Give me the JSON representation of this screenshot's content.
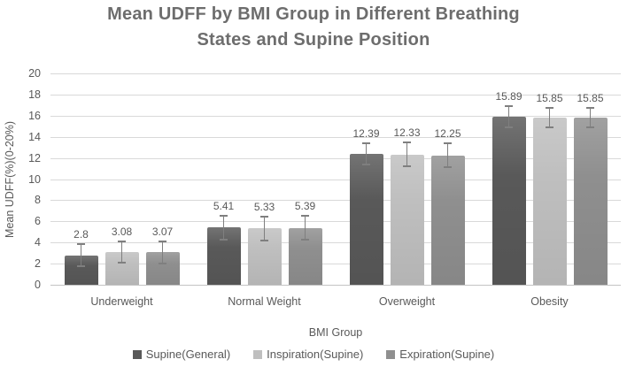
{
  "title": {
    "line1": "Mean UDFF by BMI Group in Different Breathing",
    "line2": "States and Supine Position"
  },
  "colors": {
    "title_text": "#6d6d6d",
    "axis_text": "#595959",
    "gridline": "#d9d9d9",
    "error_bar": "#7f7f7f",
    "series_dark": "#595959",
    "series_light": "#bfbfbf",
    "series_medium": "#8f8f8f"
  },
  "chart_data": {
    "type": "bar",
    "title": "Mean UDFF by BMI Group in Different Breathing States and Supine Position",
    "title_lines": [
      "Mean UDFF by BMI Group in Different Breathing",
      "States and Supine Position"
    ],
    "xlabel": "BMI Group",
    "ylabel": "Mean UDFF(%)(0-20%)",
    "ylim": [
      0,
      20
    ],
    "yticks": [
      0,
      2,
      4,
      6,
      8,
      10,
      12,
      14,
      16,
      18,
      20
    ],
    "grid": true,
    "legend_position": "bottom",
    "data_labels": true,
    "error_bars": true,
    "categories": [
      "Underweight",
      "Normal Weight",
      "Overweight",
      "Obesity"
    ],
    "series": [
      {
        "name": "Supine(General)",
        "color": "#595959",
        "values": [
          2.8,
          5.41,
          12.39,
          15.89
        ],
        "errors": [
          1.1,
          1.2,
          1.1,
          1.1
        ]
      },
      {
        "name": "Inspiration(Supine)",
        "color": "#bfbfbf",
        "values": [
          3.08,
          5.33,
          12.33,
          15.85
        ],
        "errors": [
          1.1,
          1.2,
          1.2,
          1.0
        ]
      },
      {
        "name": "Expiration(Supine)",
        "color": "#8f8f8f",
        "values": [
          3.07,
          5.39,
          12.25,
          15.85
        ],
        "errors": [
          1.1,
          1.2,
          1.2,
          1.0
        ]
      }
    ]
  }
}
